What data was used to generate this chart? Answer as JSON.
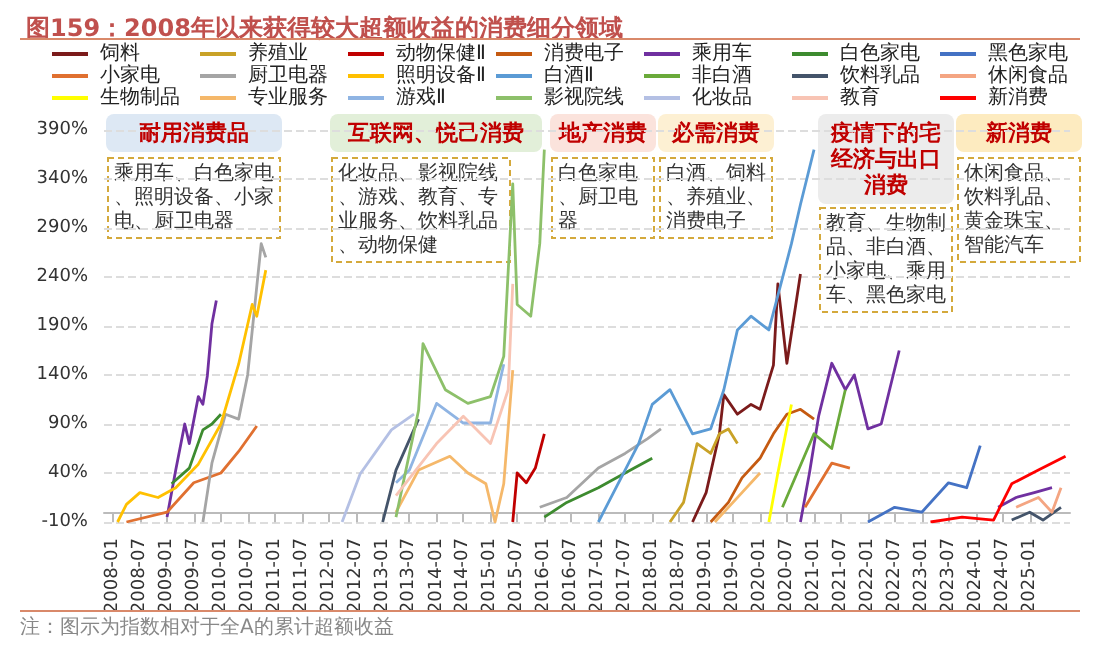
{
  "chart_data": {
    "type": "line",
    "title": "图159：2008年以来获得较大超额收益的消费细分领域",
    "annotations": [
      "耐用消费品",
      "乘用车、白色家电、照明设备、小家电、厨卫电器",
      "互联网、悦己消费",
      "化妆品、影视院线、游戏、教育、专业服务、饮料乳品、动物保健",
      "地产消费",
      "白色家电、厨卫电器",
      "必需消费",
      "白酒、饲料、养殖业、消费电子",
      "疫情下的宅经济与出口消费",
      "教育、生物制品、非白酒、小家电、乘用车、黑色家电",
      "新消费",
      "休闲食品、饮料乳品、黄金珠宝、智能汽车",
      "注：图示为指数相对于全A的累计超额收益"
    ],
    "xlim": [
      "2007-11",
      "2025-10"
    ],
    "xticks": [
      "2008-01",
      "2008-07",
      "2009-01",
      "2009-07",
      "2010-01",
      "2010-07",
      "2011-01",
      "2011-07",
      "2012-01",
      "2012-07",
      "2013-01",
      "2013-07",
      "2014-01",
      "2014-07",
      "2015-01",
      "2015-07",
      "2016-01",
      "2016-07",
      "2017-01",
      "2017-07",
      "2018-01",
      "2018-07",
      "2019-01",
      "2019-07",
      "2020-01",
      "2020-07",
      "2021-01",
      "2021-07",
      "2022-01",
      "2022-07",
      "2023-01",
      "2023-07",
      "2024-01",
      "2024-07",
      "2025-01"
    ],
    "ylim": [
      -10,
      390
    ],
    "yticks": [
      {
        "value": -10,
        "label": "-10%"
      },
      {
        "value": 40,
        "label": "40%"
      },
      {
        "value": 90,
        "label": "90%"
      },
      {
        "value": 140,
        "label": "140%"
      },
      {
        "value": 190,
        "label": "190%"
      },
      {
        "value": 240,
        "label": "240%"
      },
      {
        "value": 290,
        "label": "290%"
      },
      {
        "value": 340,
        "label": "340%"
      },
      {
        "value": 390,
        "label": "390%"
      }
    ],
    "grid": "y",
    "legend": "top",
    "series": [
      {
        "name": "饲料",
        "color": "#7b1b1b",
        "x": [
          "2018-10",
          "2019-01",
          "2019-04",
          "2019-05",
          "2019-08",
          "2019-11",
          "2020-01",
          "2020-04",
          "2020-05",
          "2020-07",
          "2020-10"
        ],
        "values": [
          -10,
          20,
          80,
          120,
          100,
          110,
          105,
          150,
          233,
          152,
          243
        ]
      },
      {
        "name": "养殖业",
        "color": "#c9a227",
        "x": [
          "2018-05",
          "2018-08",
          "2018-11",
          "2019-02",
          "2019-04",
          "2019-06",
          "2019-08"
        ],
        "values": [
          -10,
          10,
          70,
          60,
          80,
          85,
          70
        ]
      },
      {
        "name": "动物保健Ⅱ",
        "color": "#c00000",
        "x": [
          "2015-06",
          "2015-07",
          "2015-09",
          "2015-11",
          "2016-01"
        ],
        "values": [
          -10,
          40,
          30,
          45,
          80
        ]
      },
      {
        "name": "消费电子",
        "color": "#c55a11",
        "x": [
          "2019-02",
          "2019-06",
          "2019-09",
          "2020-01",
          "2020-04",
          "2020-07",
          "2020-10",
          "2021-01"
        ],
        "values": [
          -10,
          10,
          35,
          55,
          80,
          100,
          105,
          95
        ]
      },
      {
        "name": "乘用车",
        "color": "#7030a0",
        "x": [
          "2009-01",
          "2009-03",
          "2009-05",
          "2009-06",
          "2009-08",
          "2009-09",
          "2009-10",
          "2009-11",
          "2009-12",
          "2015-01",
          "2020-10",
          "2020-12",
          "2021-02",
          "2021-05",
          "2021-08",
          "2021-10",
          "2022-01",
          "2022-04",
          "2022-08",
          "2023-06",
          "2024-06",
          "2024-10",
          "2025-02",
          "2025-06"
        ],
        "values": [
          -5,
          43,
          90,
          70,
          118,
          110,
          139,
          192,
          216,
          null,
          -10,
          40,
          98,
          152,
          125,
          140,
          85,
          90,
          165,
          null,
          5,
          15,
          20,
          25
        ]
      },
      {
        "name": "白色家电",
        "color": "#3d8b2f",
        "x": [
          "2009-02",
          "2009-06",
          "2009-09",
          "2009-11",
          "2010-01",
          "2013-01",
          "2016-01",
          "2016-06",
          "2017-01",
          "2017-09",
          "2018-01"
        ],
        "values": [
          29,
          45,
          84,
          90,
          100,
          null,
          -5,
          10,
          25,
          45,
          55
        ]
      },
      {
        "name": "黑色家电",
        "color": "#4472c4",
        "x": [
          "2022-01",
          "2022-07",
          "2023-01",
          "2023-07",
          "2023-11",
          "2024-02"
        ],
        "values": [
          -10,
          5,
          0,
          30,
          25,
          68
        ]
      },
      {
        "name": "小家电",
        "color": "#e07030",
        "x": [
          "2008-04",
          "2009-01",
          "2009-07",
          "2010-01",
          "2010-05",
          "2010-09",
          "2015-01",
          "2020-11",
          "2021-05",
          "2021-09"
        ],
        "values": [
          -10,
          0,
          30,
          40,
          62,
          88,
          null,
          5,
          50,
          45
        ]
      },
      {
        "name": "厨卫电器",
        "color": "#a5a5a5",
        "x": [
          "2009-09",
          "2009-11",
          "2010-02",
          "2010-05",
          "2010-07",
          "2010-10",
          "2010-11",
          "2013-01",
          "2015-12",
          "2016-06",
          "2017-01",
          "2017-07",
          "2017-12",
          "2018-03"
        ],
        "values": [
          -10,
          50,
          100,
          95,
          140,
          274,
          260,
          null,
          5,
          15,
          45,
          60,
          75,
          85
        ]
      },
      {
        "name": "照明设备Ⅱ",
        "color": "#ffc000",
        "x": [
          "2008-02",
          "2008-04",
          "2008-07",
          "2008-11",
          "2009-03",
          "2009-08",
          "2010-01",
          "2010-05",
          "2010-08",
          "2010-09",
          "2010-11"
        ],
        "values": [
          -10,
          8,
          20,
          15,
          25,
          49,
          90,
          151,
          212,
          200,
          247
        ]
      },
      {
        "name": "白酒Ⅱ",
        "color": "#5b9bd5",
        "x": [
          "2017-01",
          "2017-07",
          "2017-10",
          "2018-01",
          "2018-05",
          "2018-10",
          "2019-02",
          "2019-05",
          "2019-08",
          "2019-11",
          "2020-03",
          "2020-08",
          "2020-10",
          "2021-01"
        ],
        "values": [
          -10,
          43,
          70,
          110,
          125,
          80,
          85,
          125,
          186,
          200,
          186,
          274,
          314,
          370
        ]
      },
      {
        "name": "非白酒",
        "color": "#6aaa3a",
        "x": [
          "2020-06",
          "2021-01",
          "2021-05",
          "2021-08"
        ],
        "values": [
          5,
          80,
          65,
          125
        ]
      },
      {
        "name": "饮料乳品",
        "color": "#44546a",
        "x": [
          "2013-01",
          "2013-04",
          "2013-09",
          "2019-01",
          "2024-09",
          "2025-01",
          "2025-04",
          "2025-08"
        ],
        "values": [
          -10,
          43,
          95,
          null,
          -8,
          0,
          -8,
          5
        ]
      },
      {
        "name": "休闲食品",
        "color": "#f4a582",
        "x": [
          "2024-10",
          "2025-03",
          "2025-06",
          "2025-08"
        ],
        "values": [
          5,
          15,
          0,
          25
        ]
      },
      {
        "name": "生物制品",
        "color": "#ffff00",
        "x": [
          "2020-03",
          "2020-05",
          "2020-08"
        ],
        "values": [
          -10,
          40,
          110
        ]
      },
      {
        "name": "专业服务",
        "color": "#f5b86a",
        "x": [
          "2013-04",
          "2013-09",
          "2014-04",
          "2014-08",
          "2014-12",
          "2015-02",
          "2015-04",
          "2015-06",
          "2017-01",
          "2019-03",
          "2019-09",
          "2020-01"
        ],
        "values": [
          0,
          43,
          57,
          40,
          29,
          -10,
          29,
          145,
          null,
          -10,
          20,
          40
        ]
      },
      {
        "name": "游戏Ⅱ",
        "color": "#8fb4e3",
        "x": [
          "2013-04",
          "2013-07",
          "2014-01",
          "2014-07",
          "2015-01",
          "2015-04"
        ],
        "values": [
          30,
          43,
          111,
          91,
          91,
          151
        ]
      },
      {
        "name": "影视院线",
        "color": "#8dc06a",
        "x": [
          "2013-04",
          "2013-09",
          "2013-10",
          "2014-03",
          "2014-08",
          "2015-01",
          "2015-04",
          "2015-06",
          "2015-07",
          "2015-10",
          "2015-12",
          "2016-01"
        ],
        "values": [
          -5,
          104,
          172,
          125,
          111,
          118,
          159,
          335,
          212,
          200,
          274,
          370
        ]
      },
      {
        "name": "化妆品",
        "color": "#b4c0e4",
        "x": [
          "2012-04",
          "2012-08",
          "2013-03",
          "2013-08"
        ],
        "values": [
          -10,
          39,
          84,
          100
        ]
      },
      {
        "name": "教育",
        "color": "#f8c4b4",
        "x": [
          "2013-04",
          "2014-01",
          "2014-07",
          "2015-01",
          "2015-05",
          "2015-06"
        ],
        "values": [
          17,
          70,
          98,
          70,
          125,
          233
        ]
      },
      {
        "name": "新消费",
        "color": "#ff0000",
        "x": [
          "2023-03",
          "2023-10",
          "2024-05",
          "2024-09",
          "2025-03",
          "2025-09"
        ],
        "values": [
          -10,
          -5,
          -8,
          29,
          43,
          57
        ]
      }
    ]
  }
}
